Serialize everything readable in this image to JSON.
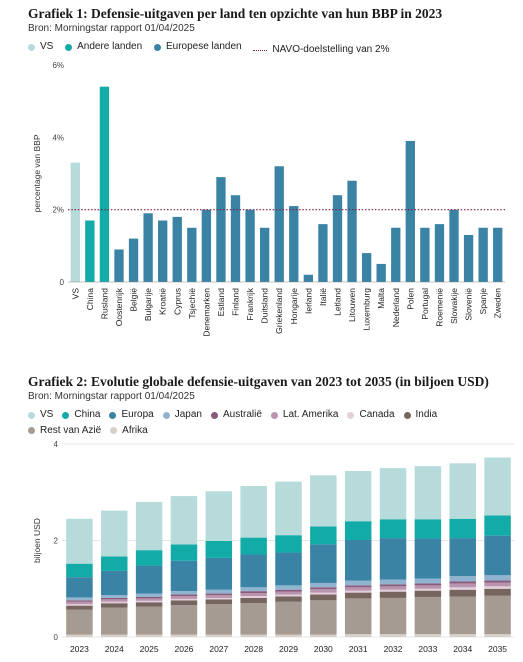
{
  "chart1": {
    "title": "Grafiek 1: Defensie-uitgaven per land ten opzichte van hun BBP in 2023",
    "source": "Bron: Morningstar rapport 01/04/2025",
    "legend": [
      {
        "name": "VS",
        "color": "#b7dbdb"
      },
      {
        "name": "Andere landen",
        "color": "#13aba7"
      },
      {
        "name": "Europese landen",
        "color": "#3b83a5"
      },
      {
        "name": "NAVO-doelstelling van 2%",
        "color": "#7a1f3a",
        "style": "dotted"
      }
    ]
  },
  "chart2": {
    "title": "Grafiek 2: Evolutie globale defensie-uitgaven van 2023 tot 2035 (in biljoen USD)",
    "source": "Bron: Morningstar rapport 01/04/2025",
    "legend": [
      {
        "name": "VS",
        "color": "#b7dbdb"
      },
      {
        "name": "China",
        "color": "#13aba7"
      },
      {
        "name": "Europa",
        "color": "#3b83a5"
      },
      {
        "name": "Japan",
        "color": "#90b4cf"
      },
      {
        "name": "Australië",
        "color": "#8a5a7c"
      },
      {
        "name": "Lat. Amerika",
        "color": "#b994ad"
      },
      {
        "name": "Canada",
        "color": "#e3cfdc"
      },
      {
        "name": "India",
        "color": "#75655e"
      },
      {
        "name": "Rest van Azië",
        "color": "#a69b93"
      },
      {
        "name": "Afrika",
        "color": "#d7d0c8"
      }
    ]
  },
  "chart_data": [
    {
      "type": "bar",
      "categories": [
        "VS",
        "China",
        "Rusland",
        "Oostenrijk",
        "België",
        "Bulgarije",
        "Kroatië",
        "Cyprus",
        "Tsjechië",
        "Denemarken",
        "Estland",
        "Finland",
        "Frankrijk",
        "Duitsland",
        "Griekenland",
        "Hongarije",
        "Ierland",
        "Italië",
        "Letland",
        "Litouwen",
        "Luxemburg",
        "Malta",
        "Nederland",
        "Polen",
        "Portugal",
        "Roemenië",
        "Slowakije",
        "Slovenië",
        "Spanje",
        "Zweden"
      ],
      "groups": [
        "VS",
        "Andere landen",
        "Andere landen",
        "Europese landen",
        "Europese landen",
        "Europese landen",
        "Europese landen",
        "Europese landen",
        "Europese landen",
        "Europese landen",
        "Europese landen",
        "Europese landen",
        "Europese landen",
        "Europese landen",
        "Europese landen",
        "Europese landen",
        "Europese landen",
        "Europese landen",
        "Europese landen",
        "Europese landen",
        "Europese landen",
        "Europese landen",
        "Europese landen",
        "Europese landen",
        "Europese landen",
        "Europese landen",
        "Europese landen",
        "Europese landen",
        "Europese landen",
        "Europese landen"
      ],
      "values": [
        3.3,
        1.7,
        5.4,
        0.9,
        1.2,
        1.9,
        1.7,
        1.8,
        1.5,
        2.0,
        2.9,
        2.4,
        2.0,
        1.5,
        3.2,
        2.1,
        0.2,
        1.6,
        2.4,
        2.8,
        0.8,
        0.5,
        1.5,
        3.9,
        1.5,
        1.6,
        2.0,
        1.3,
        1.5,
        1.5
      ],
      "target": 2,
      "target_label": "NAVO-doelstelling van 2%",
      "ylabel": "percentage van BBP",
      "yticks": [
        "0",
        "2%",
        "4%",
        "6%"
      ],
      "ylim": [
        0,
        6
      ],
      "grid": false
    },
    {
      "type": "bar",
      "stacked": true,
      "categories": [
        "2023",
        "2024",
        "2025",
        "2026",
        "2027",
        "2028",
        "2029",
        "2030",
        "2031",
        "2032",
        "2033",
        "2034",
        "2035"
      ],
      "series": [
        {
          "name": "Afrika",
          "values": [
            0.05,
            0.05,
            0.05,
            0.05,
            0.05,
            0.05,
            0.05,
            0.05,
            0.06,
            0.06,
            0.06,
            0.06,
            0.06
          ]
        },
        {
          "name": "Rest van Azië",
          "values": [
            0.52,
            0.56,
            0.58,
            0.61,
            0.63,
            0.65,
            0.68,
            0.71,
            0.74,
            0.75,
            0.77,
            0.78,
            0.8
          ]
        },
        {
          "name": "India",
          "values": [
            0.08,
            0.09,
            0.09,
            0.1,
            0.1,
            0.11,
            0.11,
            0.12,
            0.12,
            0.13,
            0.13,
            0.14,
            0.14
          ]
        },
        {
          "name": "Canada",
          "values": [
            0.03,
            0.03,
            0.03,
            0.03,
            0.03,
            0.04,
            0.04,
            0.04,
            0.04,
            0.04,
            0.04,
            0.05,
            0.05
          ]
        },
        {
          "name": "Lat. Amerika",
          "values": [
            0.05,
            0.05,
            0.05,
            0.06,
            0.06,
            0.06,
            0.06,
            0.07,
            0.07,
            0.07,
            0.07,
            0.08,
            0.08
          ]
        },
        {
          "name": "Australië",
          "values": [
            0.03,
            0.03,
            0.03,
            0.03,
            0.03,
            0.04,
            0.04,
            0.04,
            0.04,
            0.04,
            0.04,
            0.04,
            0.04
          ]
        },
        {
          "name": "Japan",
          "values": [
            0.06,
            0.06,
            0.07,
            0.07,
            0.08,
            0.08,
            0.09,
            0.09,
            0.1,
            0.1,
            0.1,
            0.11,
            0.11
          ]
        },
        {
          "name": "Europa",
          "values": [
            0.42,
            0.5,
            0.58,
            0.63,
            0.66,
            0.68,
            0.68,
            0.8,
            0.84,
            0.86,
            0.83,
            0.79,
            0.82
          ]
        },
        {
          "name": "China",
          "values": [
            0.28,
            0.3,
            0.32,
            0.34,
            0.35,
            0.35,
            0.36,
            0.37,
            0.39,
            0.39,
            0.4,
            0.4,
            0.42
          ]
        },
        {
          "name": "VS",
          "values": [
            0.93,
            0.95,
            1.0,
            1.0,
            1.03,
            1.07,
            1.11,
            1.06,
            1.04,
            1.06,
            1.1,
            1.15,
            1.2
          ]
        }
      ],
      "ylabel": "biljoen USD",
      "yticks": [
        "0",
        "2",
        "4"
      ],
      "ylim": [
        0,
        4
      ],
      "grid": true
    }
  ]
}
